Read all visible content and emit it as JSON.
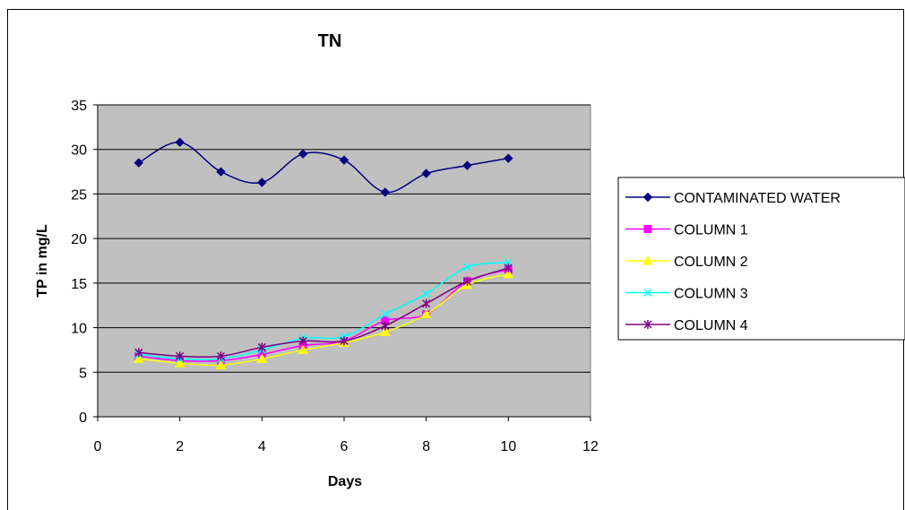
{
  "chart_data": {
    "type": "line",
    "title": "TN",
    "xlabel": "Days",
    "ylabel": "TP in mg/L",
    "xlim": [
      0,
      12
    ],
    "ylim": [
      0,
      35
    ],
    "x_ticks": [
      "0",
      "2",
      "4",
      "6",
      "8",
      "10",
      "12"
    ],
    "y_ticks": [
      "0",
      "5",
      "10",
      "15",
      "20",
      "25",
      "30",
      "35"
    ],
    "x_tick_values": [
      0,
      2,
      4,
      6,
      8,
      10,
      12
    ],
    "y_tick_values": [
      0,
      5,
      10,
      15,
      20,
      25,
      30,
      35
    ],
    "grid": "horizontal",
    "plot_background": "#c0c0c0",
    "legend_position": "right",
    "x": [
      1,
      2,
      3,
      4,
      5,
      6,
      7,
      8,
      9,
      10
    ],
    "series": [
      {
        "name": "CONTAMINATED WATER",
        "color": "#000080",
        "marker": "diamond",
        "values": [
          28.5,
          30.8,
          27.5,
          26.3,
          29.5,
          28.8,
          25.2,
          27.3,
          28.2,
          29.0
        ]
      },
      {
        "name": "COLUMN 1",
        "color": "#ff00ff",
        "marker": "square",
        "values": [
          6.8,
          6.3,
          6.3,
          7.0,
          8.0,
          8.5,
          10.8,
          11.5,
          15.2,
          16.5
        ]
      },
      {
        "name": "COLUMN 2",
        "color": "#ffff00",
        "marker": "triangle",
        "values": [
          6.5,
          6.0,
          5.8,
          6.5,
          7.5,
          8.3,
          9.5,
          11.5,
          14.8,
          16.0
        ]
      },
      {
        "name": "COLUMN 3",
        "color": "#00ffff",
        "marker": "x",
        "values": [
          7.0,
          6.5,
          6.5,
          7.5,
          8.8,
          9.0,
          11.5,
          13.8,
          16.8,
          17.3
        ]
      },
      {
        "name": "COLUMN 4",
        "color": "#800080",
        "marker": "star",
        "values": [
          7.2,
          6.8,
          6.8,
          7.8,
          8.5,
          8.5,
          10.2,
          12.7,
          15.2,
          16.7
        ]
      }
    ]
  }
}
